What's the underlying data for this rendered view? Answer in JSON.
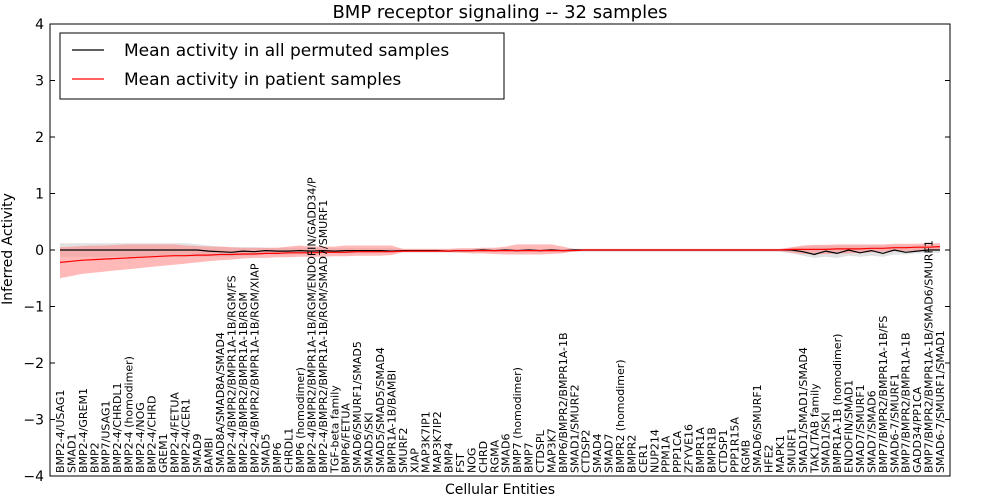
{
  "chart_data": {
    "type": "line",
    "title": "BMP receptor signaling -- 32 samples",
    "xlabel": "Cellular Entities",
    "ylabel": "Inferred Activity",
    "ylim": [
      -4,
      4
    ],
    "yticks": [
      -4,
      -3,
      -2,
      -1,
      0,
      1,
      2,
      3,
      4
    ],
    "grid": false,
    "legend_position": "top-left",
    "categories": [
      "BMP2-4/USAG1",
      "SMAD1",
      "BMP2-4/GREM1",
      "BMP2",
      "BMP7/USAG1",
      "BMP2-4/CHRDL1",
      "BMP2-4 (homodimer)",
      "BMP2-4/NOG",
      "BMP2-4/CHRD",
      "GREM1",
      "BMP2-4/FETUA",
      "BMP2-4/CER1",
      "SMAD9",
      "BAMBI",
      "SMAD8A/SMAD8A/SMAD4",
      "BMP2-4/BMPR2/BMPR1A-1B/RGM/FS",
      "BMP2-4/BMPR2/BMPR1A-1B/RGM",
      "BMP2-4/BMPR2/BMPR1A-1B/RGM/XIAP",
      "SMAD5",
      "BMP6",
      "CHRDL1",
      "BMP6 (homodimer)",
      "BMP2-4/BMPR2/BMPR1A-1B/RGM/ENDOFIN/GADD34/P",
      "BMP2-4/BMPR2/BMPR1A-1B/RGM/SMAD7/SMURF1",
      "TGF-beta family",
      "BMP6/FETUA",
      "SMAD6/SMURF1/SMAD5",
      "SMAD5/SKI",
      "SMAD5/SMAD5/SMAD4",
      "BMPR1A-1B/BAMBI",
      "SMURF2",
      "XIAP",
      "MAP3K7IP1",
      "MAP3K7IP2",
      "BMP4",
      "FST",
      "NOG",
      "CHRD",
      "RGMA",
      "SMAD6",
      "BMP7 (homodimer)",
      "BMP7",
      "CTDSPL",
      "MAP3K7",
      "BMP6/BMPR2/BMPR1A-1B",
      "SMAD1/SMURF2",
      "CTDSP2",
      "SMAD4",
      "SMAD7",
      "BMPR2 (homodimer)",
      "BMPR2",
      "CER1",
      "NUP214",
      "PPM1A",
      "PPP1CA",
      "ZFYVE16",
      "BMPR1A",
      "BMPR1B",
      "CTDSP1",
      "PPP1R15A",
      "RGMB",
      "SMAD6/SMURF1",
      "HFE2",
      "MAPK1",
      "SMURF1",
      "SMAD1/SMAD1/SMAD4",
      "TAK1/TAB family",
      "SMAD1/SKI",
      "BMPR1A-1B (homodimer)",
      "ENDOFIN/SMAD1",
      "SMAD7/SMURF1",
      "SMAD7/SMAD6",
      "BMP7/BMPR2/BMPR1A-1B/FS",
      "SMAD6-7/SMURF1",
      "BMP7/BMPR2/BMPR1A-1B",
      "GADD34/PP1CA",
      "BMP7/BMPR2/BMPR1A-1B/SMAD6/SMURF1",
      "SMAD6-7/SMURF1/SMAD1"
    ],
    "series": [
      {
        "name": "Mean activity in all permuted samples",
        "color": "#000000",
        "band_color": "#c8c8c8",
        "values": [
          0.0,
          0.0,
          0.0,
          0.0,
          0.0,
          0.0,
          0.0,
          0.0,
          0.0,
          0.0,
          0.0,
          0.0,
          0.0,
          -0.02,
          -0.03,
          -0.04,
          -0.02,
          -0.03,
          -0.01,
          -0.02,
          -0.02,
          -0.01,
          -0.02,
          -0.01,
          -0.02,
          -0.01,
          -0.01,
          -0.01,
          -0.01,
          -0.02,
          -0.01,
          -0.01,
          -0.01,
          -0.01,
          -0.02,
          -0.01,
          -0.01,
          0.0,
          -0.01,
          0.0,
          -0.01,
          0.0,
          -0.01,
          0.0,
          -0.01,
          0.0,
          0.0,
          0.0,
          0.0,
          0.0,
          0.0,
          0.0,
          0.0,
          0.0,
          0.0,
          0.0,
          0.0,
          0.0,
          0.0,
          0.0,
          0.0,
          0.0,
          0.0,
          0.0,
          0.0,
          -0.03,
          -0.08,
          -0.02,
          -0.06,
          0.0,
          -0.05,
          -0.01,
          -0.06,
          0.0,
          -0.04,
          -0.02,
          0.0,
          0.0
        ],
        "upper": [
          0.12,
          0.12,
          0.12,
          0.12,
          0.12,
          0.12,
          0.12,
          0.12,
          0.12,
          0.12,
          0.12,
          0.12,
          0.1,
          0.08,
          0.06,
          0.05,
          0.05,
          0.05,
          0.04,
          0.04,
          0.04,
          0.04,
          0.04,
          0.03,
          0.03,
          0.03,
          0.03,
          0.03,
          0.03,
          0.03,
          0.02,
          0.02,
          0.02,
          0.02,
          0.02,
          0.02,
          0.02,
          0.02,
          0.02,
          0.02,
          0.02,
          0.02,
          0.02,
          0.02,
          0.02,
          0.02,
          0.02,
          0.02,
          0.02,
          0.02,
          0.02,
          0.02,
          0.02,
          0.02,
          0.02,
          0.02,
          0.02,
          0.02,
          0.02,
          0.02,
          0.02,
          0.02,
          0.02,
          0.02,
          0.04,
          0.06,
          0.08,
          0.08,
          0.08,
          0.08,
          0.08,
          0.08,
          0.08,
          0.08,
          0.08,
          0.08,
          0.08,
          0.08
        ],
        "lower": [
          -0.12,
          -0.12,
          -0.12,
          -0.12,
          -0.12,
          -0.12,
          -0.12,
          -0.12,
          -0.12,
          -0.12,
          -0.12,
          -0.12,
          -0.12,
          -0.12,
          -0.12,
          -0.12,
          -0.1,
          -0.1,
          -0.08,
          -0.08,
          -0.08,
          -0.07,
          -0.07,
          -0.06,
          -0.06,
          -0.06,
          -0.06,
          -0.06,
          -0.05,
          -0.05,
          -0.04,
          -0.04,
          -0.04,
          -0.04,
          -0.04,
          -0.04,
          -0.03,
          -0.03,
          -0.03,
          -0.03,
          -0.03,
          -0.03,
          -0.03,
          -0.03,
          -0.03,
          -0.03,
          -0.03,
          -0.03,
          -0.03,
          -0.03,
          -0.03,
          -0.03,
          -0.03,
          -0.03,
          -0.03,
          -0.03,
          -0.03,
          -0.03,
          -0.03,
          -0.03,
          -0.03,
          -0.03,
          -0.03,
          -0.03,
          -0.06,
          -0.1,
          -0.14,
          -0.12,
          -0.14,
          -0.1,
          -0.12,
          -0.1,
          -0.12,
          -0.08,
          -0.08,
          -0.06,
          -0.05,
          -0.05
        ]
      },
      {
        "name": "Mean activity in patient samples",
        "color": "#ff0000",
        "band_color": "#ff8a8a",
        "values": [
          -0.22,
          -0.2,
          -0.18,
          -0.17,
          -0.16,
          -0.15,
          -0.14,
          -0.13,
          -0.12,
          -0.11,
          -0.1,
          -0.1,
          -0.09,
          -0.09,
          -0.08,
          -0.08,
          -0.07,
          -0.07,
          -0.06,
          -0.06,
          -0.05,
          -0.05,
          -0.05,
          -0.04,
          -0.04,
          -0.04,
          -0.03,
          -0.03,
          -0.03,
          -0.03,
          -0.02,
          -0.02,
          -0.02,
          -0.02,
          -0.02,
          -0.01,
          -0.01,
          -0.01,
          -0.01,
          -0.01,
          -0.01,
          -0.01,
          -0.01,
          -0.01,
          -0.01,
          -0.01,
          0.0,
          0.0,
          0.0,
          0.0,
          0.0,
          0.0,
          0.0,
          0.0,
          0.0,
          0.0,
          0.0,
          0.0,
          0.0,
          0.0,
          0.0,
          0.0,
          0.0,
          0.0,
          0.01,
          0.01,
          0.01,
          0.01,
          0.02,
          0.02,
          0.02,
          0.03,
          0.03,
          0.04,
          0.04,
          0.05,
          0.05,
          0.06
        ],
        "upper": [
          0.05,
          0.06,
          0.07,
          0.08,
          0.08,
          0.09,
          0.1,
          0.1,
          0.1,
          0.1,
          0.1,
          0.08,
          0.07,
          0.06,
          0.06,
          0.05,
          0.04,
          0.04,
          0.04,
          0.04,
          0.06,
          0.08,
          0.06,
          0.06,
          0.06,
          0.08,
          0.08,
          0.08,
          0.08,
          0.08,
          0.02,
          0.02,
          0.02,
          0.02,
          0.02,
          0.03,
          0.03,
          0.04,
          0.04,
          0.06,
          0.1,
          0.1,
          0.1,
          0.1,
          0.06,
          0.02,
          0.02,
          0.02,
          0.02,
          0.02,
          0.02,
          0.02,
          0.02,
          0.02,
          0.02,
          0.02,
          0.02,
          0.02,
          0.02,
          0.02,
          0.02,
          0.02,
          0.02,
          0.02,
          0.05,
          0.08,
          0.09,
          0.09,
          0.1,
          0.1,
          0.1,
          0.1,
          0.1,
          0.11,
          0.11,
          0.11,
          0.12,
          0.12
        ],
        "lower": [
          -0.5,
          -0.46,
          -0.42,
          -0.4,
          -0.38,
          -0.36,
          -0.34,
          -0.32,
          -0.3,
          -0.28,
          -0.26,
          -0.24,
          -0.22,
          -0.2,
          -0.18,
          -0.17,
          -0.15,
          -0.14,
          -0.14,
          -0.13,
          -0.13,
          -0.12,
          -0.12,
          -0.12,
          -0.11,
          -0.11,
          -0.1,
          -0.1,
          -0.1,
          -0.09,
          -0.04,
          -0.04,
          -0.04,
          -0.04,
          -0.04,
          -0.05,
          -0.06,
          -0.06,
          -0.07,
          -0.08,
          -0.08,
          -0.08,
          -0.08,
          -0.07,
          -0.06,
          -0.02,
          -0.02,
          -0.02,
          -0.02,
          -0.02,
          -0.02,
          -0.02,
          -0.02,
          -0.02,
          -0.02,
          -0.02,
          -0.02,
          -0.02,
          -0.02,
          -0.02,
          -0.02,
          -0.02,
          -0.02,
          -0.02,
          -0.05,
          -0.07,
          -0.07,
          -0.07,
          -0.06,
          -0.06,
          -0.05,
          -0.04,
          -0.03,
          -0.02,
          -0.02,
          -0.01,
          -0.01,
          0.0
        ]
      }
    ]
  }
}
